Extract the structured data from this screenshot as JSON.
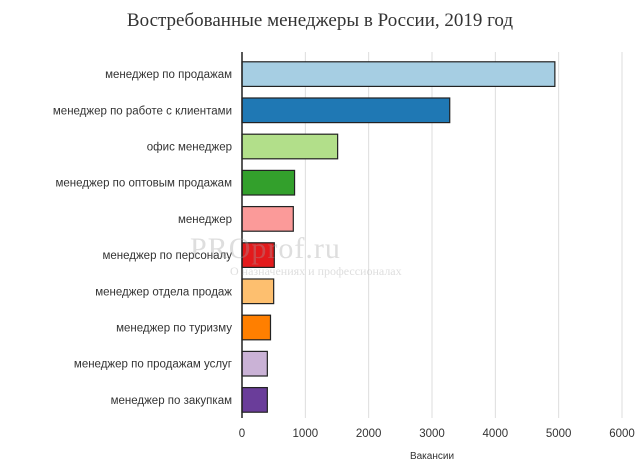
{
  "chart_data": {
    "type": "bar",
    "orientation": "horizontal",
    "title": "Востребованные менеджеры в России, 2019 год",
    "xlabel": "Вакансии",
    "ylabel": "",
    "xlim": [
      0,
      6000
    ],
    "xticks": [
      0,
      1000,
      2000,
      3000,
      4000,
      5000,
      6000
    ],
    "grid": true,
    "categories": [
      "менеджер по продажам",
      "менеджер по работе с клиентами",
      "офис менеджер",
      "менеджер по оптовым продажам",
      "менеджер",
      "менеджер по персоналу",
      "менеджер отдела продаж",
      "менеджер по туризму",
      "менеджер по продажам услуг",
      "менеджер по закупкам"
    ],
    "values": [
      4940,
      3280,
      1510,
      830,
      810,
      510,
      500,
      450,
      400,
      400
    ],
    "colors": [
      "#a6cee3",
      "#1f78b4",
      "#b2df8a",
      "#33a02c",
      "#fb9a99",
      "#e31a1c",
      "#fdbf6f",
      "#ff7f00",
      "#cab2d6",
      "#6a3d9a"
    ]
  },
  "watermark": {
    "text": "PROprof.ru",
    "subtext": "О назначениях и профессионалах"
  }
}
